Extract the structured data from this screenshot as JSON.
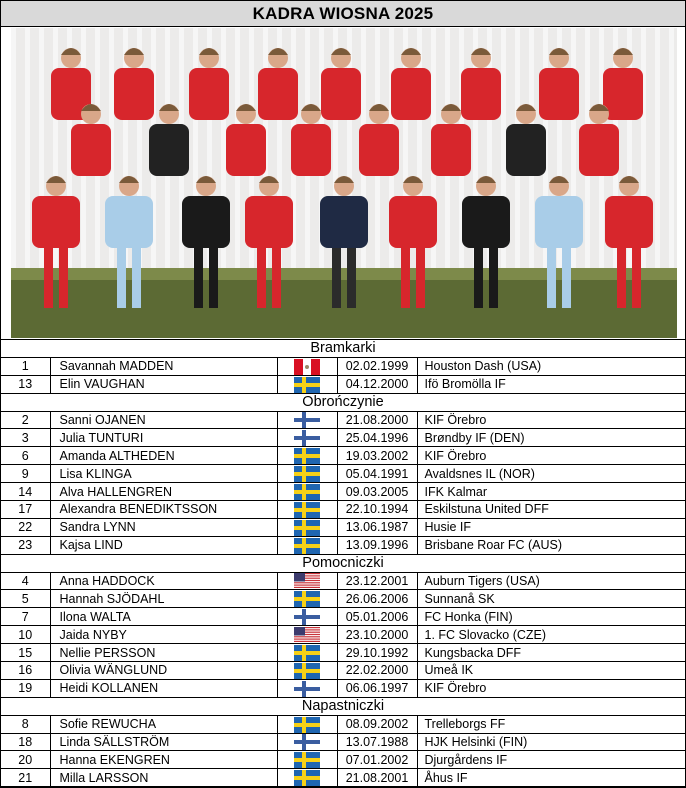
{
  "title": "KADRA WIOSNA 2025",
  "photo": {
    "description_icon": "team-photo"
  },
  "colors": {
    "title_bg": "#d9d9d9",
    "jersey_red": "#d7262c",
    "goalkeeper_blue": "#a9cde8"
  },
  "sections": [
    {
      "label": "Bramkarki",
      "players": [
        {
          "number": "1",
          "name": "Savannah MADDEN",
          "flag": "peru",
          "dob": "02.02.1999",
          "club": "Houston Dash (USA)"
        },
        {
          "number": "13",
          "name": "Elin VAUGHAN",
          "flag": "sweden",
          "dob": "04.12.2000",
          "club": "Ifö Bromölla IF"
        }
      ]
    },
    {
      "label": "Obrończynie",
      "players": [
        {
          "number": "2",
          "name": "Sanni OJANEN",
          "flag": "finland",
          "dob": "21.08.2000",
          "club": "KIF Örebro"
        },
        {
          "number": "3",
          "name": "Julia TUNTURI",
          "flag": "finland",
          "dob": "25.04.1996",
          "club": "Brøndby IF (DEN)"
        },
        {
          "number": "6",
          "name": "Amanda ALTHEDEN",
          "flag": "sweden",
          "dob": "19.03.2002",
          "club": "KIF Örebro"
        },
        {
          "number": "9",
          "name": "Lisa KLINGA",
          "flag": "sweden",
          "dob": "05.04.1991",
          "club": "Avaldsnes IL (NOR)"
        },
        {
          "number": "14",
          "name": "Alva HALLENGREN",
          "flag": "sweden",
          "dob": "09.03.2005",
          "club": "IFK Kalmar"
        },
        {
          "number": "17",
          "name": "Alexandra BENEDIKTSSON",
          "flag": "sweden",
          "dob": "22.10.1994",
          "club": "Eskilstuna United DFF"
        },
        {
          "number": "22",
          "name": "Sandra LYNN",
          "flag": "sweden",
          "dob": "13.06.1987",
          "club": "Husie IF"
        },
        {
          "number": "23",
          "name": "Kajsa LIND",
          "flag": "sweden",
          "dob": "13.09.1996",
          "club": "Brisbane Roar FC (AUS)"
        }
      ]
    },
    {
      "label": "Pomocniczki",
      "players": [
        {
          "number": "4",
          "name": "Anna HADDOCK",
          "flag": "usa",
          "dob": "23.12.2001",
          "club": "Auburn Tigers (USA)"
        },
        {
          "number": "5",
          "name": "Hannah SJÖDAHL",
          "flag": "sweden",
          "dob": "26.06.2006",
          "club": "Sunnanå SK"
        },
        {
          "number": "7",
          "name": "Ilona WALTA",
          "flag": "finland",
          "dob": "05.01.2006",
          "club": "FC Honka (FIN)"
        },
        {
          "number": "10",
          "name": "Jaida NYBY",
          "flag": "usa",
          "dob": "23.10.2000",
          "club": "1. FC Slovacko (CZE)"
        },
        {
          "number": "15",
          "name": "Nellie PERSSON",
          "flag": "sweden",
          "dob": "29.10.1992",
          "club": "Kungsbacka DFF"
        },
        {
          "number": "16",
          "name": "Olivia WÄNGLUND",
          "flag": "sweden",
          "dob": "22.02.2000",
          "club": "Umeå IK"
        },
        {
          "number": "19",
          "name": "Heidi KOLLANEN",
          "flag": "finland",
          "dob": "06.06.1997",
          "club": "KIF Örebro"
        }
      ]
    },
    {
      "label": "Napastniczki",
      "players": [
        {
          "number": "8",
          "name": "Sofie REWUCHA",
          "flag": "sweden",
          "dob": "08.09.2002",
          "club": "Trelleborgs FF"
        },
        {
          "number": "18",
          "name": "Linda SÄLLSTRÖM",
          "flag": "finland",
          "dob": "13.07.1988",
          "club": "HJK Helsinki (FIN)"
        },
        {
          "number": "20",
          "name": "Hanna EKENGREN",
          "flag": "sweden",
          "dob": "07.01.2002",
          "club": "Djurgårdens IF"
        },
        {
          "number": "21",
          "name": "Milla LARSSON",
          "flag": "sweden",
          "dob": "21.08.2001",
          "club": "Åhus IF"
        }
      ]
    }
  ]
}
